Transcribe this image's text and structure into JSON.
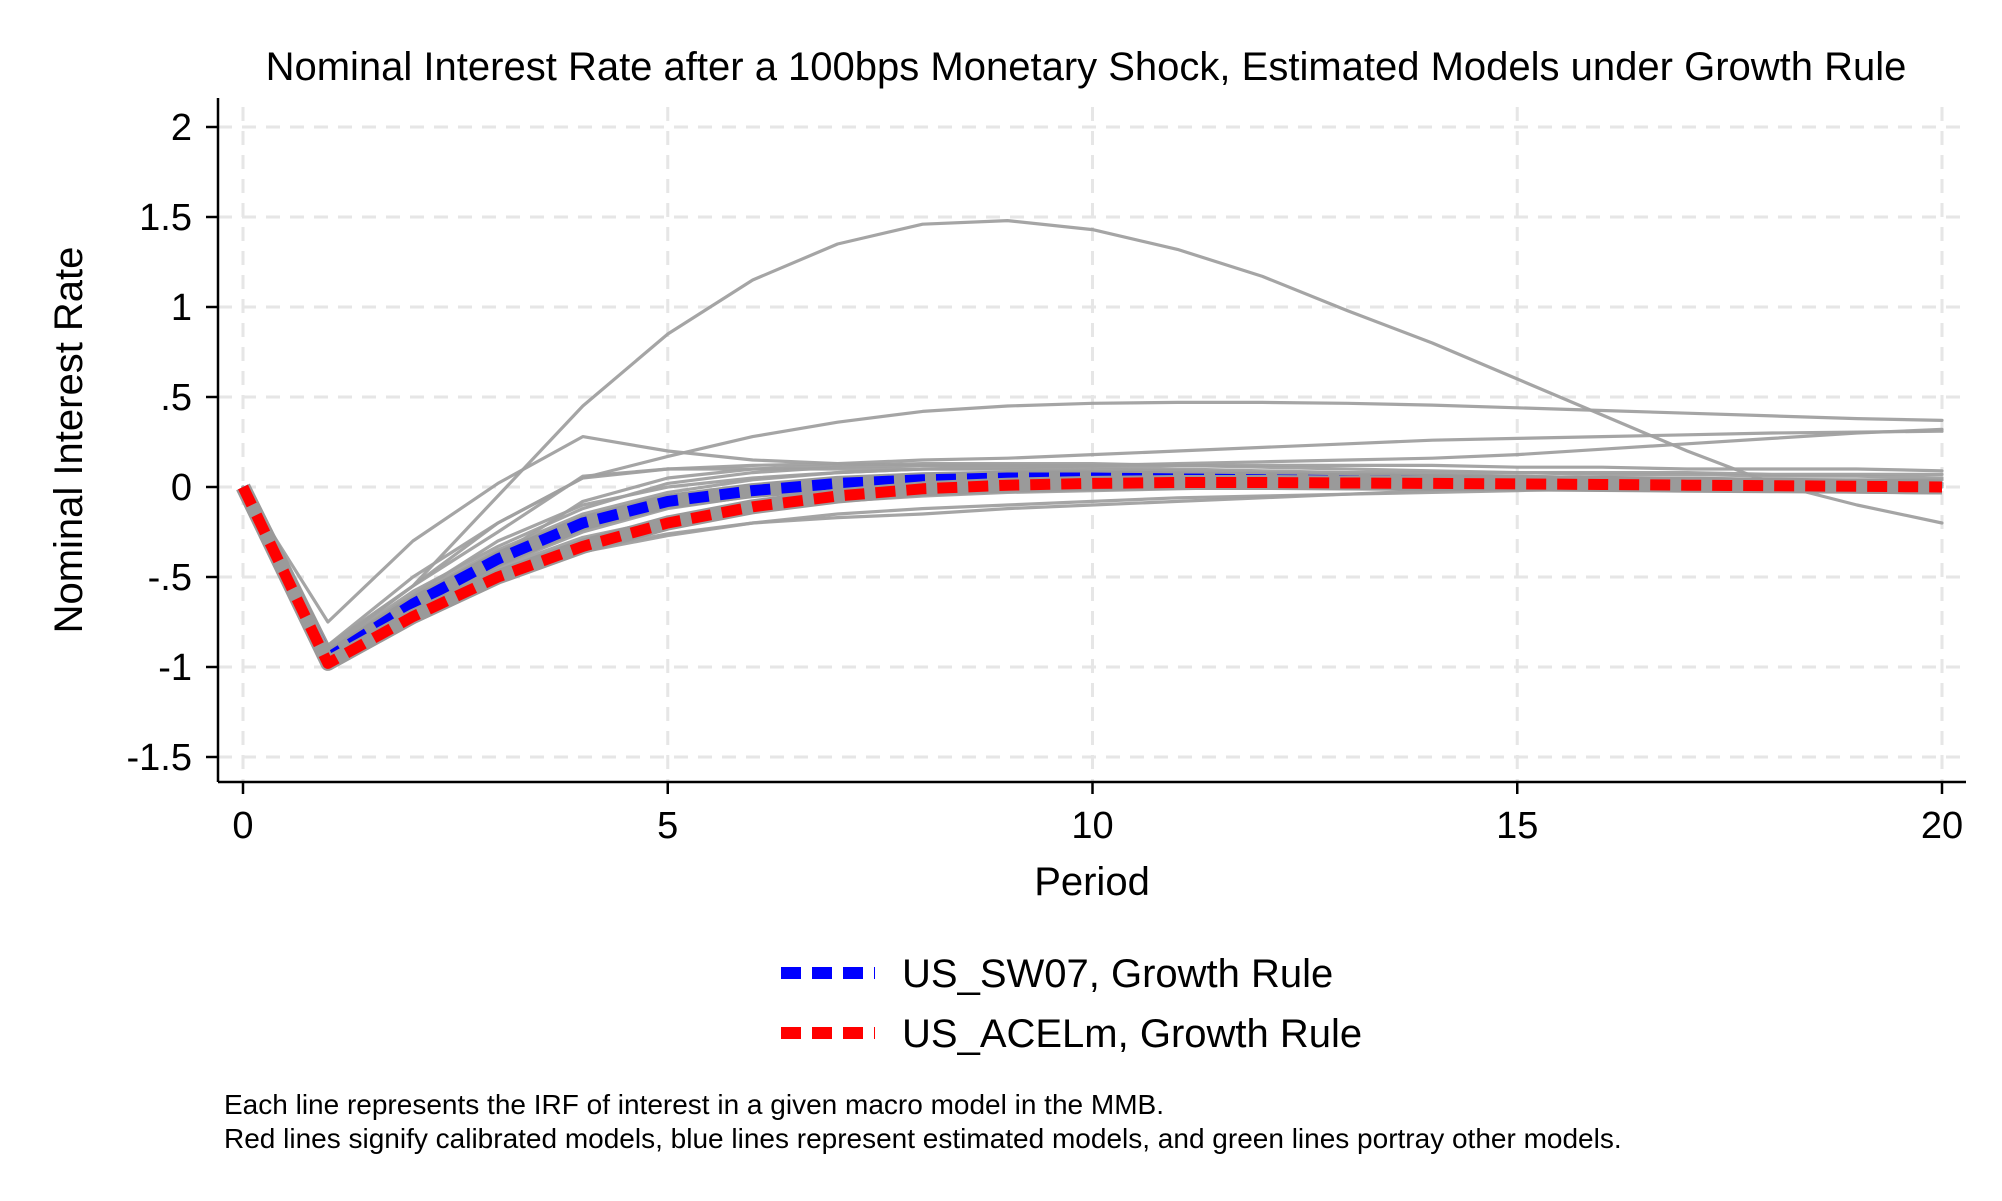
{
  "chart_data": {
    "type": "line",
    "title": "Nominal Interest Rate after a 100bps Monetary Shock, Estimated Models under Growth Rule",
    "xlabel": "Period",
    "ylabel": "Nominal Interest Rate",
    "xlim": [
      0,
      20
    ],
    "ylim": [
      -1.65,
      2.15
    ],
    "x_ticks": [
      0,
      5,
      10,
      15,
      20
    ],
    "x_tick_labels": [
      "0",
      "5",
      "10",
      "15",
      "20"
    ],
    "y_ticks": [
      2,
      1.5,
      1,
      0.5,
      0,
      -0.5,
      -1,
      -1.5
    ],
    "y_tick_labels": [
      "2",
      "1.5",
      "1",
      ".5",
      "0",
      "-.5",
      "-1",
      "-1.5"
    ],
    "grid": true,
    "legend_position": "bottom",
    "x": [
      0,
      1,
      2,
      3,
      4,
      5,
      6,
      7,
      8,
      9,
      10,
      11,
      12,
      13,
      14,
      15,
      16,
      17,
      18,
      19,
      20
    ],
    "series": [
      {
        "name": "US_SW07, Growth Rule",
        "color": "#0000ff",
        "style": "dashed",
        "highlight": true,
        "values": [
          0,
          -0.95,
          -0.65,
          -0.4,
          -0.2,
          -0.08,
          -0.02,
          0.02,
          0.04,
          0.05,
          0.05,
          0.045,
          0.04,
          0.035,
          0.03,
          0.025,
          0.02,
          0.015,
          0.01,
          0.005,
          0
        ]
      },
      {
        "name": "US_ACELm, Growth Rule",
        "color": "#ff0000",
        "style": "dashed",
        "highlight": true,
        "values": [
          0,
          -0.98,
          -0.72,
          -0.5,
          -0.33,
          -0.2,
          -0.11,
          -0.05,
          -0.01,
          0.01,
          0.02,
          0.025,
          0.025,
          0.022,
          0.02,
          0.017,
          0.014,
          0.01,
          0.007,
          0.004,
          0
        ]
      },
      {
        "color": "#a0a0a0",
        "values": [
          0,
          -0.88,
          -0.55,
          -0.05,
          0.45,
          0.85,
          1.15,
          1.35,
          1.46,
          1.48,
          1.43,
          1.32,
          1.17,
          0.98,
          0.8,
          0.6,
          0.4,
          0.2,
          0.02,
          -0.1,
          -0.2
        ]
      },
      {
        "color": "#a0a0a0",
        "values": [
          0,
          -0.9,
          -0.55,
          -0.2,
          0.05,
          0.17,
          0.28,
          0.36,
          0.42,
          0.45,
          0.465,
          0.47,
          0.47,
          0.465,
          0.455,
          0.44,
          0.425,
          0.41,
          0.395,
          0.38,
          0.37
        ]
      },
      {
        "color": "#a0a0a0",
        "values": [
          0,
          -0.75,
          -0.3,
          0.02,
          0.28,
          0.2,
          0.15,
          0.13,
          0.12,
          0.12,
          0.12,
          0.12,
          0.12,
          0.12,
          0.12,
          0.11,
          0.11,
          0.1,
          0.1,
          0.1,
          0.09
        ]
      },
      {
        "color": "#a0a0a0",
        "values": [
          0,
          -0.88,
          -0.5,
          -0.2,
          0.05,
          0.1,
          0.12,
          0.13,
          0.15,
          0.16,
          0.18,
          0.2,
          0.22,
          0.24,
          0.26,
          0.27,
          0.28,
          0.29,
          0.3,
          0.305,
          0.31
        ]
      },
      {
        "color": "#a0a0a0",
        "values": [
          0,
          -0.9,
          -0.6,
          -0.3,
          -0.1,
          0,
          0.05,
          0.08,
          0.1,
          0.11,
          0.12,
          0.13,
          0.14,
          0.15,
          0.16,
          0.18,
          0.21,
          0.24,
          0.27,
          0.3,
          0.32
        ]
      },
      {
        "color": "#a0a0a0",
        "values": [
          0,
          -0.92,
          -0.62,
          -0.38,
          -0.08,
          0.05,
          0.1,
          0.12,
          0.13,
          0.13,
          0.13,
          0.12,
          0.11,
          0.1,
          0.09,
          0.08,
          0.07,
          0.07,
          0.06,
          0.06,
          0.05
        ]
      },
      {
        "color": "#a0a0a0",
        "values": [
          0,
          -0.93,
          -0.68,
          -0.45,
          -0.28,
          -0.18,
          -0.12,
          -0.08,
          -0.05,
          -0.03,
          -0.02,
          -0.01,
          0,
          0.01,
          0.01,
          0.01,
          0.01,
          0.01,
          0.01,
          0.01,
          0.01
        ]
      },
      {
        "color": "#a0a0a0",
        "values": [
          0,
          -0.95,
          -0.7,
          -0.5,
          -0.35,
          -0.26,
          -0.2,
          -0.17,
          -0.15,
          -0.12,
          -0.1,
          -0.08,
          -0.06,
          -0.04,
          -0.02,
          -0.01,
          0,
          0.01,
          0.01,
          0.01,
          0.01
        ]
      },
      {
        "color": "#a0a0a0",
        "values": [
          0,
          -0.9,
          -0.58,
          -0.33,
          -0.12,
          0.02,
          0.08,
          0.11,
          0.12,
          0.12,
          0.11,
          0.1,
          0.09,
          0.08,
          0.07,
          0.06,
          0.05,
          0.04,
          0.03,
          0.02,
          0.02
        ]
      },
      {
        "color": "#a0a0a0",
        "values": [
          0,
          -0.94,
          -0.66,
          -0.44,
          -0.25,
          -0.12,
          -0.05,
          -0.01,
          0.02,
          0.03,
          0.04,
          0.04,
          0.04,
          0.04,
          0.03,
          0.03,
          0.03,
          0.02,
          0.02,
          0.02,
          0.02
        ]
      },
      {
        "color": "#a0a0a0",
        "values": [
          0,
          -0.91,
          -0.6,
          -0.35,
          -0.15,
          -0.03,
          0.04,
          0.08,
          0.1,
          0.1,
          0.1,
          0.09,
          0.08,
          0.07,
          0.06,
          0.06,
          0.05,
          0.05,
          0.04,
          0.04,
          0.04
        ]
      },
      {
        "color": "#a0a0a0",
        "values": [
          0,
          -0.95,
          -0.72,
          -0.5,
          -0.36,
          -0.27,
          -0.2,
          -0.15,
          -0.12,
          -0.1,
          -0.08,
          -0.06,
          -0.05,
          -0.04,
          -0.03,
          -0.02,
          -0.01,
          -0.01,
          0,
          0,
          0
        ]
      },
      {
        "color": "#a0a0a0",
        "values": [
          0,
          -0.89,
          -0.55,
          -0.25,
          0.06,
          0.1,
          0.1,
          0.1,
          0.1,
          0.1,
          0.09,
          0.09,
          0.08,
          0.08,
          0.08,
          0.08,
          0.08,
          0.08,
          0.07,
          0.07,
          0.07
        ]
      }
    ]
  },
  "notes": [
    "Each line represents the IRF of interest in a given macro model in the MMB.",
    "Red lines signify calibrated models, blue lines represent estimated models, and green lines portray other models."
  ]
}
